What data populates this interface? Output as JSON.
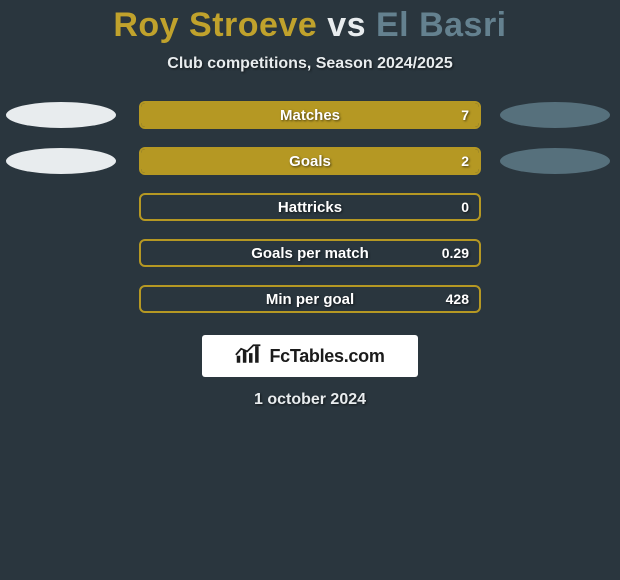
{
  "title": {
    "player1": "Roy Stroeve",
    "vs": "vs",
    "player2": "El Basri",
    "player1_color": "#c0a22c",
    "vs_color": "#e8ecee",
    "player2_color": "#64818f"
  },
  "subtitle": "Club competitions, Season 2024/2025",
  "background_color": "#2a363e",
  "left_ellipse_color": "#e8ecee",
  "right_ellipse_color": "#56707c",
  "bar_border_color": "#b59823",
  "bar_fill_color": "#b59823",
  "rows": [
    {
      "label": "Matches",
      "value": "7",
      "fill_pct": 100,
      "show_left_ellipse": true,
      "show_right_ellipse": true
    },
    {
      "label": "Goals",
      "value": "2",
      "fill_pct": 100,
      "show_left_ellipse": true,
      "show_right_ellipse": true
    },
    {
      "label": "Hattricks",
      "value": "0",
      "fill_pct": 0,
      "show_left_ellipse": false,
      "show_right_ellipse": false
    },
    {
      "label": "Goals per match",
      "value": "0.29",
      "fill_pct": 0,
      "show_left_ellipse": false,
      "show_right_ellipse": false
    },
    {
      "label": "Min per goal",
      "value": "428",
      "fill_pct": 0,
      "show_left_ellipse": false,
      "show_right_ellipse": false
    }
  ],
  "brand": "FcTables.com",
  "date": "1 october 2024"
}
